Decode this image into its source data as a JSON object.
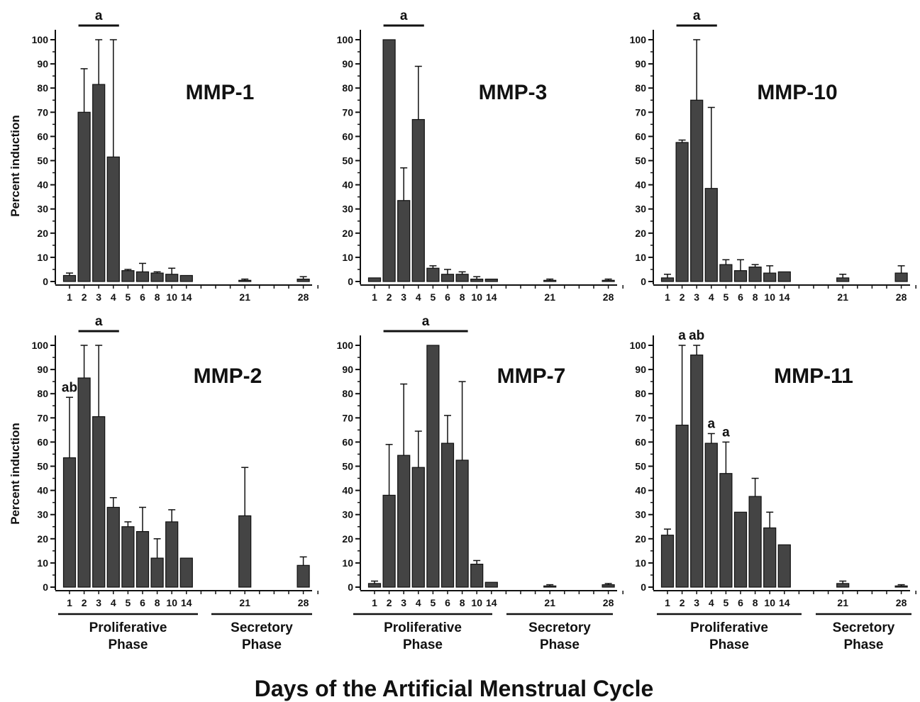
{
  "figure_title": "Days of the Artificial Menstrual Cycle",
  "phase_labels": {
    "proliferative": [
      "Proliferative",
      "Phase"
    ],
    "secretory": [
      "Secretory",
      "Phase"
    ]
  },
  "chart_data": [
    {
      "type": "bar",
      "title": "MMP-1",
      "ylabel": "Percent induction",
      "ylim": [
        0,
        100
      ],
      "yticks": [
        0,
        10,
        20,
        30,
        40,
        50,
        60,
        70,
        80,
        90,
        100
      ],
      "categories": [
        "1",
        "2",
        "3",
        "4",
        "5",
        "6",
        "8",
        "10",
        "14",
        "21",
        "28"
      ],
      "values": [
        2.5,
        70,
        81.5,
        51.5,
        4.5,
        4,
        3.5,
        3,
        2.5,
        0.5,
        1
      ],
      "errors": [
        1,
        18,
        18.5,
        48.5,
        0.5,
        3.5,
        0.5,
        2.5,
        0,
        0.5,
        1
      ],
      "annotations": [
        {
          "text": "a",
          "span": [
            "2",
            "4"
          ]
        }
      ]
    },
    {
      "type": "bar",
      "title": "MMP-3",
      "ylabel": "",
      "ylim": [
        0,
        100
      ],
      "yticks": [
        0,
        10,
        20,
        30,
        40,
        50,
        60,
        70,
        80,
        90,
        100
      ],
      "categories": [
        "1",
        "2",
        "3",
        "4",
        "5",
        "6",
        "8",
        "10",
        "14",
        "21",
        "28"
      ],
      "values": [
        1.5,
        100,
        33.5,
        67,
        5.5,
        3,
        3,
        1,
        1,
        0.5,
        0.5
      ],
      "errors": [
        0,
        0,
        13.5,
        22,
        1,
        2,
        1,
        1,
        0,
        0.5,
        0.5
      ],
      "annotations": [
        {
          "text": "a",
          "span": [
            "2",
            "4"
          ]
        }
      ]
    },
    {
      "type": "bar",
      "title": "MMP-10",
      "ylabel": "",
      "ylim": [
        0,
        100
      ],
      "yticks": [
        0,
        10,
        20,
        30,
        40,
        50,
        60,
        70,
        80,
        90,
        100
      ],
      "categories": [
        "1",
        "2",
        "3",
        "4",
        "5",
        "6",
        "8",
        "10",
        "14",
        "21",
        "28"
      ],
      "values": [
        1.5,
        57.5,
        75,
        38.5,
        7,
        4.5,
        6,
        3.5,
        4,
        1.5,
        3.5
      ],
      "errors": [
        1.5,
        1,
        25,
        33.5,
        2,
        4.5,
        1,
        3,
        0,
        1.5,
        3
      ],
      "annotations": [
        {
          "text": "a",
          "span": [
            "2",
            "4"
          ]
        }
      ]
    },
    {
      "type": "bar",
      "title": "MMP-2",
      "ylabel": "Percent induction",
      "ylim": [
        0,
        100
      ],
      "yticks": [
        0,
        10,
        20,
        30,
        40,
        50,
        60,
        70,
        80,
        90,
        100
      ],
      "categories": [
        "1",
        "2",
        "3",
        "4",
        "5",
        "6",
        "8",
        "10",
        "14",
        "21",
        "28"
      ],
      "values": [
        53.5,
        86.5,
        70.5,
        33,
        25,
        23,
        12,
        27,
        12,
        29.5,
        9
      ],
      "errors": [
        25,
        13.5,
        29.5,
        4,
        2,
        10,
        8,
        5,
        0,
        20,
        3.5
      ],
      "annotations": [
        {
          "text": "a",
          "span": [
            "2",
            "4"
          ]
        },
        {
          "text": "ab",
          "at": "1"
        }
      ]
    },
    {
      "type": "bar",
      "title": "MMP-7",
      "ylabel": "",
      "ylim": [
        0,
        100
      ],
      "yticks": [
        0,
        10,
        20,
        30,
        40,
        50,
        60,
        70,
        80,
        90,
        100
      ],
      "categories": [
        "1",
        "2",
        "3",
        "4",
        "5",
        "6",
        "8",
        "10",
        "14",
        "21",
        "28"
      ],
      "values": [
        1.5,
        38,
        54.5,
        49.5,
        100,
        59.5,
        52.5,
        9.5,
        2,
        0.5,
        1
      ],
      "errors": [
        1,
        21,
        29.5,
        15,
        0,
        11.5,
        32.5,
        1.5,
        0,
        0.5,
        0.5
      ],
      "annotations": [
        {
          "text": "a",
          "span": [
            "2",
            "8"
          ]
        }
      ]
    },
    {
      "type": "bar",
      "title": "MMP-11",
      "ylabel": "",
      "ylim": [
        0,
        100
      ],
      "yticks": [
        0,
        10,
        20,
        30,
        40,
        50,
        60,
        70,
        80,
        90,
        100
      ],
      "categories": [
        "1",
        "2",
        "3",
        "4",
        "5",
        "6",
        "8",
        "10",
        "14",
        "21",
        "28"
      ],
      "values": [
        21.5,
        67,
        96,
        59.5,
        47,
        31,
        37.5,
        24.5,
        17.5,
        1.5,
        0.5
      ],
      "errors": [
        2.5,
        33,
        4,
        4,
        13,
        0,
        7.5,
        6.5,
        0,
        1,
        0.5
      ],
      "annotations": [
        {
          "text": "a",
          "at": "2"
        },
        {
          "text": "ab",
          "at": "3"
        },
        {
          "text": "a",
          "at": "4"
        },
        {
          "text": "a",
          "at": "5"
        }
      ]
    }
  ]
}
